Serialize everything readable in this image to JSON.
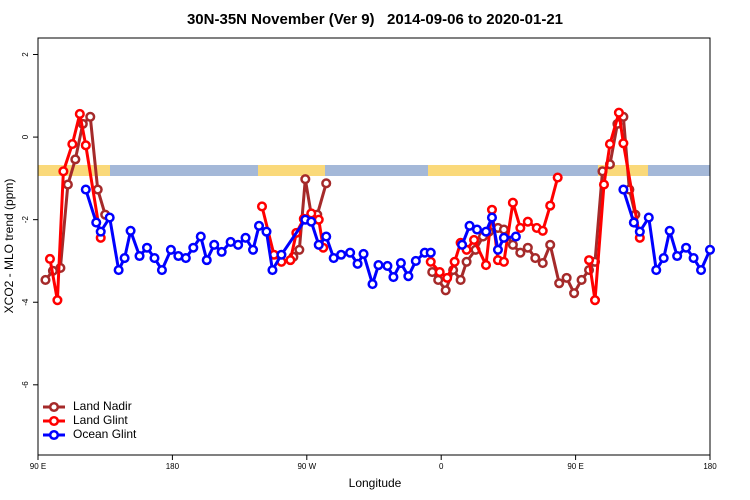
{
  "chart_data": {
    "type": "line",
    "title": "30N-35N November (Ver 9)   2014-09-06 to 2020-01-21",
    "xlabel": "Longitude",
    "ylabel": "XCO2 - MLO trend (ppm)",
    "xlim": [
      90,
      540
    ],
    "ylim": [
      -7.7,
      2.4
    ],
    "xticks": [
      {
        "value": 90,
        "label": "90 E"
      },
      180,
      {
        "value": 270,
        "label": "90 W"
      },
      {
        "value": 360,
        "label": "0"
      },
      {
        "value": 450,
        "label": "90 E"
      },
      {
        "value": 540,
        "label": "180"
      }
    ],
    "yticks": [
      2,
      0,
      -2,
      -4,
      -6
    ],
    "legend": "bottom-left",
    "series": [
      {
        "name": "Land Nadir",
        "color": "#a52a2a",
        "x": [
          95,
          100,
          105,
          110,
          115,
          120,
          125,
          130,
          135,
          200,
          261,
          265,
          269,
          273,
          277,
          283,
          320,
          354,
          358,
          363,
          368,
          373,
          377,
          383,
          388,
          392,
          398,
          402,
          408,
          413,
          418,
          423,
          428,
          433,
          439,
          444,
          449,
          454,
          459,
          463,
          468,
          473,
          478,
          482,
          486,
          490
        ],
        "values": [
          -3.46,
          -3.24,
          -3.17,
          -1.15,
          -0.54,
          0.32,
          0.49,
          -1.27,
          -1.88,
          null,
          -2.9,
          -2.73,
          -1.02,
          -1.88,
          -1.88,
          -1.12,
          null,
          -3.27,
          -3.46,
          -3.71,
          -3.22,
          -3.46,
          -3.02,
          -2.73,
          -2.41,
          -2.29,
          -2.2,
          -2.24,
          -2.61,
          -2.8,
          -2.68,
          -2.93,
          -3.05,
          -2.61,
          -3.54,
          -3.41,
          -3.78,
          -3.46,
          -3.22,
          -3.02,
          -0.83,
          -0.66,
          0.32,
          0.49,
          -1.27,
          -1.88
        ]
      },
      {
        "name": "Land Glint",
        "color": "#ff0000",
        "x": [
          98,
          103,
          107,
          113,
          118,
          122,
          132,
          190,
          240,
          248,
          253,
          259,
          263,
          268,
          273,
          278,
          281,
          320,
          353,
          359,
          364,
          369,
          373,
          377,
          382,
          390,
          394,
          398,
          402,
          408,
          413,
          418,
          424,
          428,
          433,
          438,
          448,
          459,
          463,
          469,
          473,
          479,
          482,
          493
        ],
        "values": [
          -2.95,
          -3.95,
          -0.83,
          -0.17,
          0.56,
          -0.2,
          -2.44,
          null,
          -1.68,
          -2.85,
          -3.02,
          -2.98,
          -2.32,
          -1.98,
          -1.85,
          -2.0,
          -2.68,
          null,
          -3.02,
          -3.27,
          -3.41,
          -3.02,
          -2.56,
          -2.73,
          -2.49,
          -3.1,
          -1.76,
          -2.98,
          -3.02,
          -1.59,
          -2.2,
          -2.05,
          -2.2,
          -2.27,
          -1.66,
          -0.98,
          null,
          -2.98,
          -3.95,
          -1.15,
          -0.17,
          0.59,
          -0.15,
          -2.44
        ]
      },
      {
        "name": "Ocean Glint",
        "color": "#0000ff",
        "x": [
          122,
          129,
          132,
          138,
          144,
          148,
          152,
          158,
          163,
          168,
          173,
          179,
          184,
          189,
          194,
          199,
          203,
          208,
          213,
          219,
          224,
          229,
          234,
          238,
          243,
          247,
          253,
          269,
          273,
          278,
          283,
          288,
          293,
          299,
          304,
          308,
          314,
          318,
          324,
          328,
          333,
          338,
          343,
          349,
          353,
          363,
          374,
          379,
          384,
          390,
          394,
          398,
          402,
          410,
          446,
          482,
          489,
          493,
          499,
          504,
          509,
          513,
          518,
          524,
          529,
          534,
          540
        ],
        "values": [
          -1.27,
          -2.07,
          -2.29,
          -1.95,
          -3.22,
          -2.93,
          -2.27,
          -2.88,
          -2.68,
          -2.93,
          -3.22,
          -2.73,
          -2.88,
          -2.93,
          -2.68,
          -2.41,
          -2.98,
          -2.61,
          -2.78,
          -2.54,
          -2.61,
          -2.44,
          -2.73,
          -2.15,
          -2.29,
          -3.22,
          -2.85,
          -2.0,
          -2.05,
          -2.61,
          -2.41,
          -2.93,
          -2.85,
          -2.8,
          -3.07,
          -2.83,
          -3.56,
          -3.1,
          -3.12,
          -3.39,
          -3.05,
          -3.37,
          -3.0,
          -2.8,
          -2.8,
          null,
          -2.61,
          -2.15,
          -2.24,
          -2.29,
          -1.95,
          -2.73,
          -2.44,
          -2.41,
          null,
          -1.27,
          -2.07,
          -2.29,
          -1.95,
          -3.22,
          -2.93,
          -2.27,
          -2.88,
          -2.68,
          -2.93,
          -3.22,
          -2.73
        ]
      }
    ]
  }
}
